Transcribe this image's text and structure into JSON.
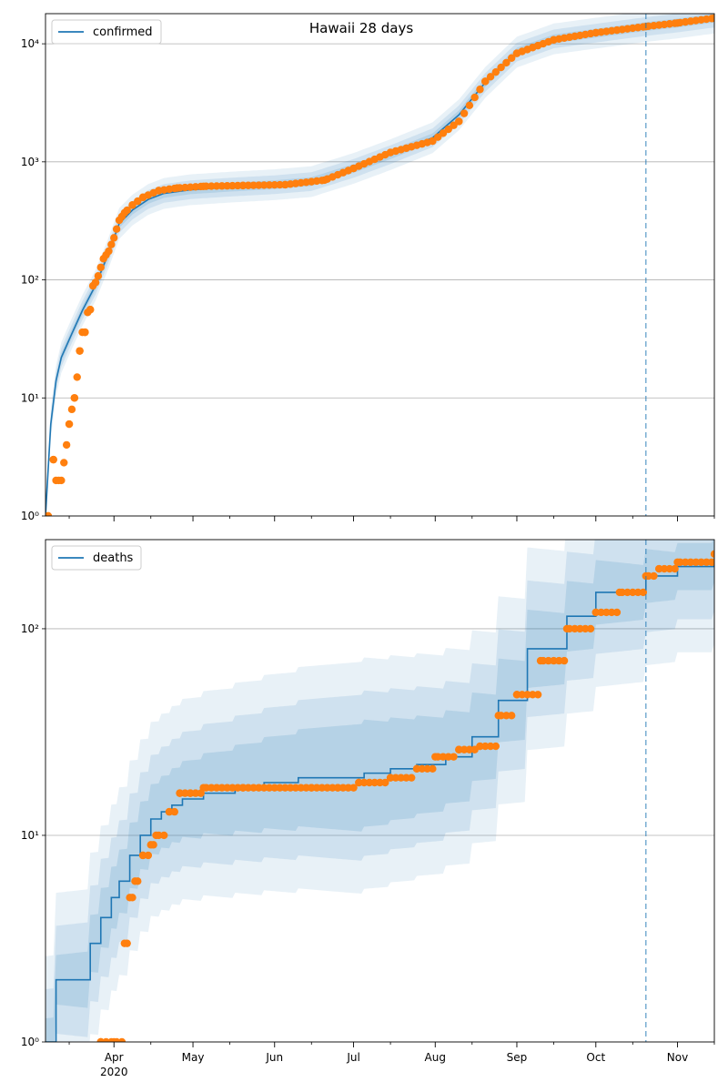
{
  "chart_data": [
    {
      "type": "line",
      "title": "Hawaii 28 days",
      "yscale": "log",
      "ylim": [
        1,
        18000
      ],
      "grid": "y",
      "legend_placement": "top-left",
      "legend": [
        "confirmed"
      ],
      "colors": {
        "model": "#1f77b4",
        "observed": "#ff7f0e",
        "band": "#1f77b4",
        "vline": "#1f77b4"
      },
      "vertical_marker_date": "2020-10-20",
      "y_tick_labels": [
        "10⁰",
        "10¹",
        "10²",
        "10³",
        "10⁴"
      ],
      "series": [
        {
          "name": "confirmed",
          "kind": "model",
          "x": [
            "2020-03-06",
            "2020-03-08",
            "2020-03-10",
            "2020-03-12",
            "2020-03-16",
            "2020-03-20",
            "2020-03-25",
            "2020-03-30",
            "2020-04-03",
            "2020-04-08",
            "2020-04-14",
            "2020-04-20",
            "2020-04-30",
            "2020-05-15",
            "2020-06-01",
            "2020-06-15",
            "2020-07-01",
            "2020-07-15",
            "2020-07-31",
            "2020-08-10",
            "2020-08-20",
            "2020-09-01",
            "2020-09-15",
            "2020-10-01",
            "2020-10-20",
            "2020-11-01",
            "2020-11-15"
          ],
          "values": [
            1,
            6,
            14,
            22,
            35,
            55,
            90,
            170,
            300,
            390,
            480,
            540,
            580,
            610,
            640,
            680,
            880,
            1150,
            1600,
            2500,
            4700,
            8500,
            11000,
            12300,
            14000,
            15000,
            16500
          ]
        },
        {
          "kind": "observed",
          "x": [
            "2020-03-07",
            "2020-03-09",
            "2020-03-10",
            "2020-03-12",
            "2020-03-14",
            "2020-03-15",
            "2020-03-16",
            "2020-03-17",
            "2020-03-18",
            "2020-03-19",
            "2020-03-20",
            "2020-03-21",
            "2020-03-22",
            "2020-03-23",
            "2020-03-24",
            "2020-03-25",
            "2020-03-26",
            "2020-03-28",
            "2020-03-30",
            "2020-04-01",
            "2020-04-03",
            "2020-04-05",
            "2020-04-08",
            "2020-04-12",
            "2020-04-18",
            "2020-04-25",
            "2020-05-05",
            "2020-05-20",
            "2020-06-05",
            "2020-06-20",
            "2020-07-01",
            "2020-07-15",
            "2020-07-31",
            "2020-08-10",
            "2020-08-20",
            "2020-09-01",
            "2020-09-15",
            "2020-10-01",
            "2020-10-20",
            "2020-11-01",
            "2020-11-15"
          ],
          "values": [
            1,
            3,
            2,
            2,
            4,
            6,
            8,
            10,
            15,
            25,
            36,
            36,
            53,
            56,
            89,
            95,
            108,
            151,
            175,
            227,
            320,
            370,
            430,
            500,
            570,
            600,
            620,
            630,
            640,
            700,
            880,
            1200,
            1500,
            2200,
            4800,
            8300,
            10800,
            12400,
            14000,
            15000,
            16500
          ]
        }
      ]
    },
    {
      "type": "line",
      "yscale": "log",
      "ylim": [
        1,
        270
      ],
      "grid": "y",
      "legend_placement": "top-left",
      "legend": [
        "deaths"
      ],
      "vertical_marker_date": "2020-10-20",
      "y_tick_labels": [
        "10⁰",
        "10¹",
        "10²"
      ],
      "x_tick_labels": [
        "Apr",
        "May",
        "Jun",
        "Jul",
        "Aug",
        "Sep",
        "Oct",
        "Nov"
      ],
      "x_tick_sublabel": "2020",
      "series": [
        {
          "name": "deaths",
          "kind": "model",
          "step": true,
          "x": [
            "2020-03-06",
            "2020-03-10",
            "2020-03-17",
            "2020-03-23",
            "2020-03-27",
            "2020-03-31",
            "2020-04-03",
            "2020-04-07",
            "2020-04-11",
            "2020-04-15",
            "2020-04-19",
            "2020-04-23",
            "2020-04-27",
            "2020-05-05",
            "2020-05-17",
            "2020-05-28",
            "2020-06-10",
            "2020-06-25",
            "2020-07-05",
            "2020-07-15",
            "2020-07-25",
            "2020-08-05",
            "2020-08-15",
            "2020-08-25",
            "2020-09-05",
            "2020-09-20",
            "2020-10-01",
            "2020-10-20",
            "2020-11-01",
            "2020-11-15"
          ],
          "values": [
            1,
            2,
            2,
            3,
            4,
            5,
            6,
            8,
            10,
            12,
            13,
            14,
            15,
            16,
            17,
            18,
            19,
            19,
            20,
            21,
            22,
            24,
            30,
            45,
            80,
            115,
            150,
            180,
            200,
            220
          ]
        },
        {
          "kind": "observed",
          "step": true,
          "x": [
            "2020-03-27",
            "2020-04-01",
            "2020-04-05",
            "2020-04-07",
            "2020-04-09",
            "2020-04-12",
            "2020-04-15",
            "2020-04-17",
            "2020-04-22",
            "2020-04-26",
            "2020-04-30",
            "2020-05-05",
            "2020-05-20",
            "2020-06-15",
            "2020-06-25",
            "2020-07-03",
            "2020-07-15",
            "2020-07-25",
            "2020-08-01",
            "2020-08-10",
            "2020-08-18",
            "2020-08-25",
            "2020-09-01",
            "2020-09-10",
            "2020-09-20",
            "2020-10-01",
            "2020-10-10",
            "2020-10-20",
            "2020-10-25",
            "2020-11-01",
            "2020-11-15"
          ],
          "values": [
            1,
            1,
            3,
            5,
            6,
            8,
            9,
            10,
            13,
            16,
            16,
            17,
            17,
            17,
            17,
            18,
            19,
            21,
            24,
            26,
            27,
            38,
            48,
            70,
            100,
            120,
            150,
            180,
            195,
            210,
            230
          ]
        }
      ]
    }
  ]
}
